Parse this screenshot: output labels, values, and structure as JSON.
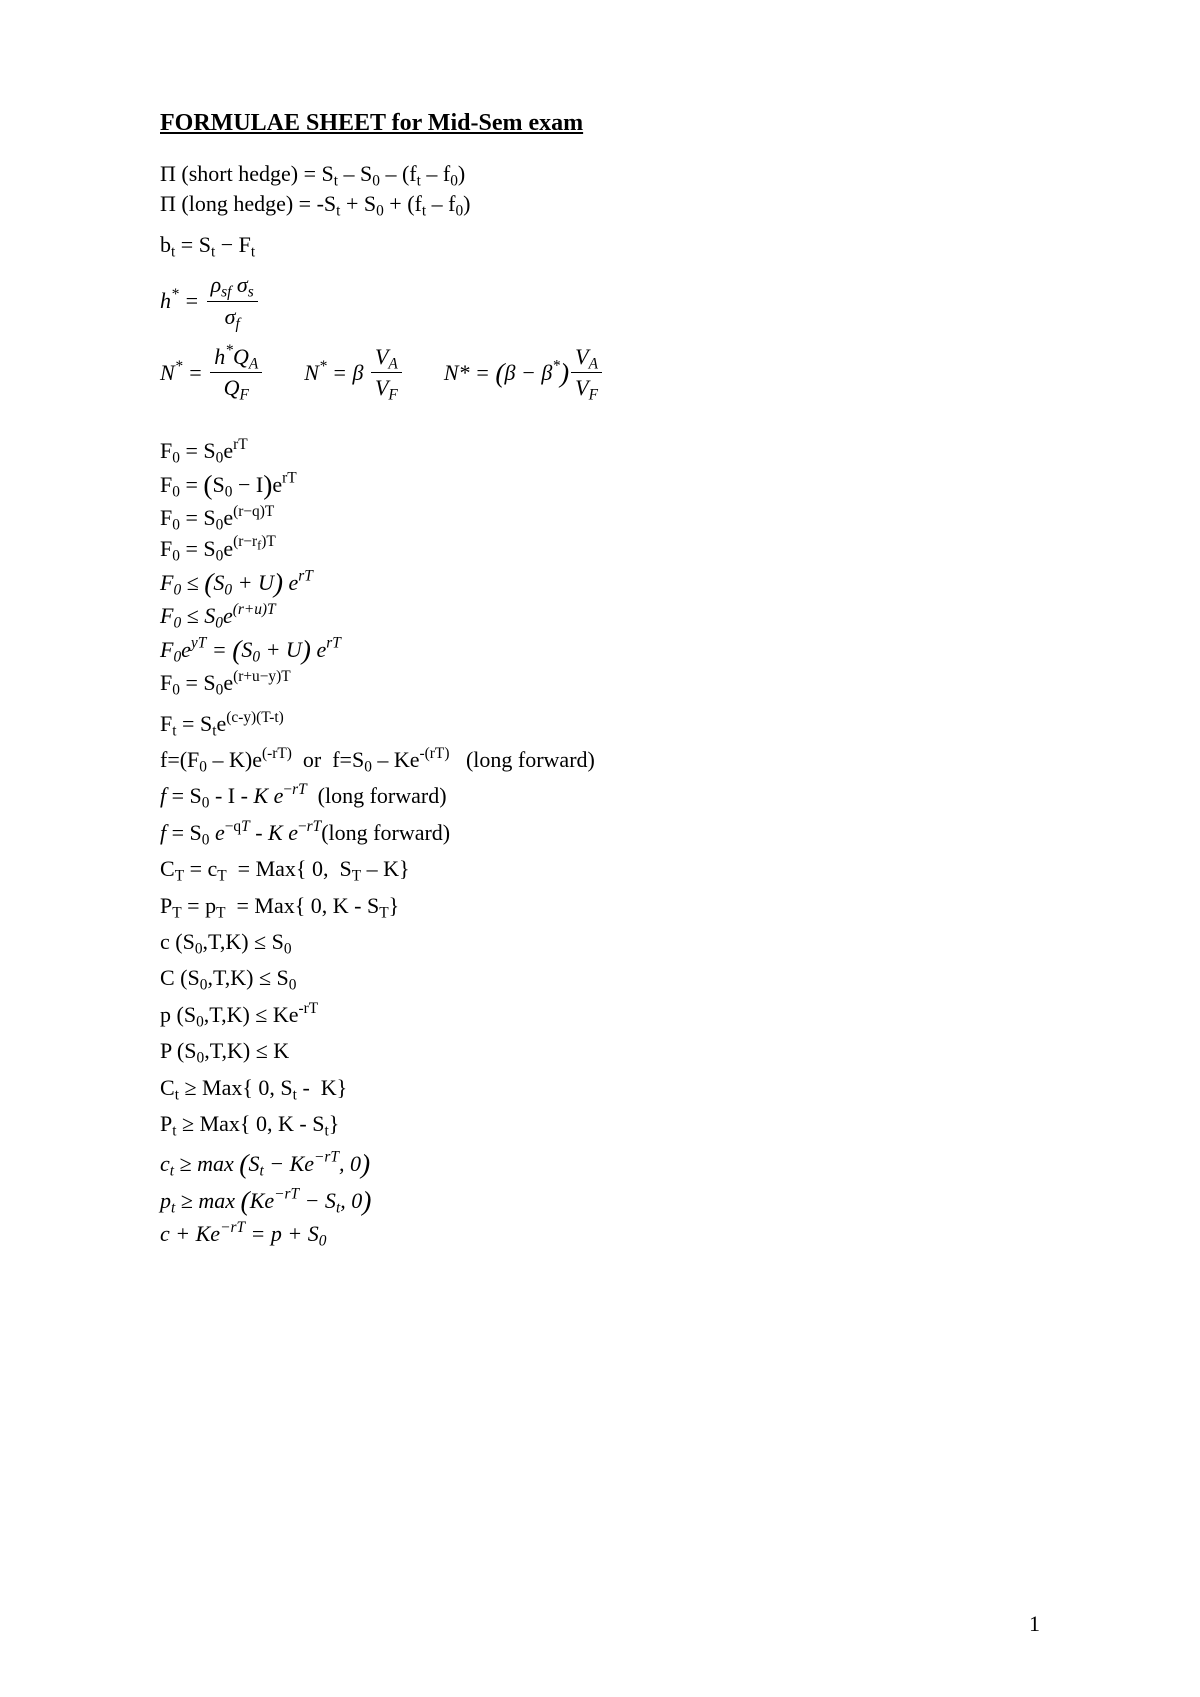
{
  "title": "FORMULAE SHEET for Mid-Sem exam",
  "pageNumber": "1",
  "lines": {
    "pi_short": "Π (short hedge) = Sₜ – S₀ – (fₜ – f₀)",
    "pi_long": "Π (long hedge) = -Sₜ + S₀ + (fₜ – f₀)",
    "basis": "bₜ = Sₜ − Fₜ",
    "hstar_lhs": "h* =",
    "hstar_num": "ρₛf σₛ",
    "hstar_den": "σf",
    "nstar1_lhs": "N* =",
    "nstar1_num": "h*Q_A",
    "nstar1_den": "Q_F",
    "nstar2_lhs": "N* = β",
    "nstar2_num": "V_A",
    "nstar2_den": "V_F",
    "nstar3_lhs": "N* = (β − β*)",
    "nstar3_num": "V_A",
    "nstar3_den": "V_F",
    "f0_1": "F₀ = S₀eʳᵀ",
    "f0_2_lhs": "F₀ = ",
    "f0_2_rhs": "(S₀ − I)eʳᵀ",
    "f0_3": "F₀ = S₀e⁽ʳ⁻q⁾ᵀ",
    "f0_4": "F₀ = S₀e⁽ʳ⁻ʳf⁾ᵀ",
    "f0_5": "F₀ ≤ (S₀ + U) eʳᵀ",
    "f0_6": "F₀ ≤ S₀e⁽ʳ⁺ᵘ⁾ᵀ",
    "f0_7": "F₀eʸᵀ = (S₀ + U) eʳᵀ",
    "f0_8": "F₀ = S₀e⁽ʳ⁺ᵘ⁻ʸ⁾ᵀ",
    "ft": "Fₜ = Sₜe⁽ᶜ⁻ʸ⁾⁽ᵀ⁻ᵗ⁾",
    "fwd1": "f=(F₀ – K)e⁽⁻ʳᵀ⁾   or   f=S₀ – Ke⁻⁽ʳᵀ⁾    (long forward)",
    "fwd2": "f = S₀ - I - K e⁻ʳᵀ  (long forward)",
    "fwd3": "f = S₀ e⁻qᵀ - K e⁻ʳᵀ(long forward)",
    "ct_payoff": "Cᴛ = cᴛ  = Max{ 0,  Sᴛ – K}",
    "pt_payoff": "Pᴛ = pᴛ  = Max{ 0, K - Sᴛ}",
    "c_ub": "c (S₀,T,K) ≤ S₀",
    "C_ub": "C (S₀,T,K) ≤ S₀",
    "p_ub": "p (S₀,T,K) ≤ Ke⁻ʳᵀ",
    "P_ub": "P (S₀,T,K) ≤ K",
    "Ct_lb": "Cₜ ≥ Max{ 0, Sₜ -  K}",
    "Pt_lb": "Pₜ ≥ Max{ 0, K - Sₜ}",
    "ct_lb": "cₜ ≥ max (Sₜ − Ke⁻ʳᵀ, 0)",
    "pt_lb": "pₜ ≥ max (Ke⁻ʳᵀ − Sₜ, 0)",
    "parity": "c + Ke⁻ʳᵀ = p + S₀"
  }
}
